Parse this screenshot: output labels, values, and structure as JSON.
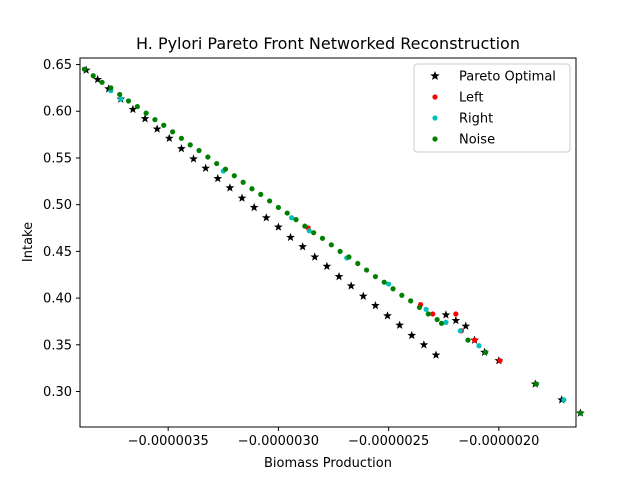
{
  "chart_data": {
    "type": "scatter",
    "title": "H. Pylori Pareto Front Networked Reconstruction",
    "xlabel": "Biomass Production",
    "ylabel": "Intake",
    "xlim": [
      -3.9e-06,
      -1.65e-06
    ],
    "ylim": [
      0.262,
      0.657
    ],
    "x_ticks": [
      -3.5e-06,
      -3e-06,
      -2.5e-06,
      -2e-06
    ],
    "x_tick_labels": [
      "−0.0000035",
      "−0.0000030",
      "−0.0000025",
      "−0.0000020"
    ],
    "y_ticks": [
      0.3,
      0.35,
      0.4,
      0.45,
      0.5,
      0.55,
      0.6,
      0.65
    ],
    "y_tick_labels": [
      "0.30",
      "0.35",
      "0.40",
      "0.45",
      "0.50",
      "0.55",
      "0.60",
      "0.65"
    ],
    "grid": false,
    "legend_position": "top-right",
    "series": [
      {
        "name": "Pareto Optimal",
        "marker": "star",
        "color": "#000000",
        "x": [
          -3.872e-06,
          -3.82e-06,
          -3.77e-06,
          -3.715e-06,
          -3.66e-06,
          -3.605e-06,
          -3.55e-06,
          -3.495e-06,
          -3.44e-06,
          -3.385e-06,
          -3.33e-06,
          -3.275e-06,
          -3.22e-06,
          -3.165e-06,
          -3.11e-06,
          -3.055e-06,
          -3e-06,
          -2.945e-06,
          -2.89e-06,
          -2.835e-06,
          -2.78e-06,
          -2.725e-06,
          -2.67e-06,
          -2.615e-06,
          -2.56e-06,
          -2.505e-06,
          -2.45e-06,
          -2.395e-06,
          -2.34e-06,
          -2.285e-06,
          -2.24e-06,
          -2.195e-06,
          -2.15e-06,
          -2.11e-06,
          -2.065e-06,
          -2e-06,
          -1.835e-06,
          -1.715e-06,
          -1.63e-06
        ],
        "y": [
          0.644,
          0.634,
          0.624,
          0.613,
          0.602,
          0.592,
          0.581,
          0.571,
          0.56,
          0.549,
          0.539,
          0.528,
          0.518,
          0.507,
          0.497,
          0.486,
          0.476,
          0.465,
          0.455,
          0.444,
          0.434,
          0.423,
          0.413,
          0.402,
          0.392,
          0.381,
          0.371,
          0.36,
          0.35,
          0.339,
          0.382,
          0.376,
          0.37,
          0.355,
          0.342,
          0.333,
          0.308,
          0.291,
          0.277
        ]
      },
      {
        "name": "Left",
        "marker": "circle",
        "color": "#ff0000",
        "x": [
          -2.865e-06,
          -2.355e-06,
          -2.3e-06,
          -2.195e-06,
          -2.17e-06,
          -2.11e-06,
          -1.995e-06
        ],
        "y": [
          0.475,
          0.393,
          0.383,
          0.383,
          0.365,
          0.355,
          0.333
        ]
      },
      {
        "name": "Right",
        "marker": "circle",
        "color": "#00bfbf",
        "x": [
          -3.76e-06,
          -3.715e-06,
          -3.25e-06,
          -2.94e-06,
          -2.86e-06,
          -2.69e-06,
          -2.5e-06,
          -2.33e-06,
          -2.24e-06,
          -2.175e-06,
          -2.09e-06,
          -1.705e-06
        ],
        "y": [
          0.622,
          0.613,
          0.536,
          0.486,
          0.472,
          0.443,
          0.415,
          0.388,
          0.374,
          0.365,
          0.349,
          0.291
        ]
      },
      {
        "name": "Noise",
        "marker": "circle",
        "color": "#008000",
        "x": [
          -3.88e-06,
          -3.84e-06,
          -3.8e-06,
          -3.76e-06,
          -3.72e-06,
          -3.68e-06,
          -3.64e-06,
          -3.6e-06,
          -3.56e-06,
          -3.52e-06,
          -3.48e-06,
          -3.44e-06,
          -3.4e-06,
          -3.36e-06,
          -3.32e-06,
          -3.28e-06,
          -3.24e-06,
          -3.2e-06,
          -3.16e-06,
          -3.12e-06,
          -3.08e-06,
          -3.04e-06,
          -3e-06,
          -2.96e-06,
          -2.92e-06,
          -2.88e-06,
          -2.84e-06,
          -2.8e-06,
          -2.76e-06,
          -2.72e-06,
          -2.68e-06,
          -2.64e-06,
          -2.6e-06,
          -2.56e-06,
          -2.52e-06,
          -2.48e-06,
          -2.44e-06,
          -2.4e-06,
          -2.36e-06,
          -2.32e-06,
          -2.28e-06,
          -2.26e-06,
          -2.14e-06,
          -2.06e-06,
          -1.83e-06,
          -1.63e-06
        ],
        "y": [
          0.645,
          0.638,
          0.631,
          0.625,
          0.618,
          0.611,
          0.605,
          0.598,
          0.591,
          0.585,
          0.578,
          0.571,
          0.564,
          0.558,
          0.551,
          0.544,
          0.538,
          0.531,
          0.524,
          0.517,
          0.511,
          0.504,
          0.497,
          0.491,
          0.484,
          0.477,
          0.47,
          0.464,
          0.457,
          0.45,
          0.444,
          0.437,
          0.43,
          0.423,
          0.417,
          0.41,
          0.403,
          0.397,
          0.39,
          0.383,
          0.377,
          0.373,
          0.355,
          0.342,
          0.308,
          0.277
        ]
      }
    ]
  }
}
